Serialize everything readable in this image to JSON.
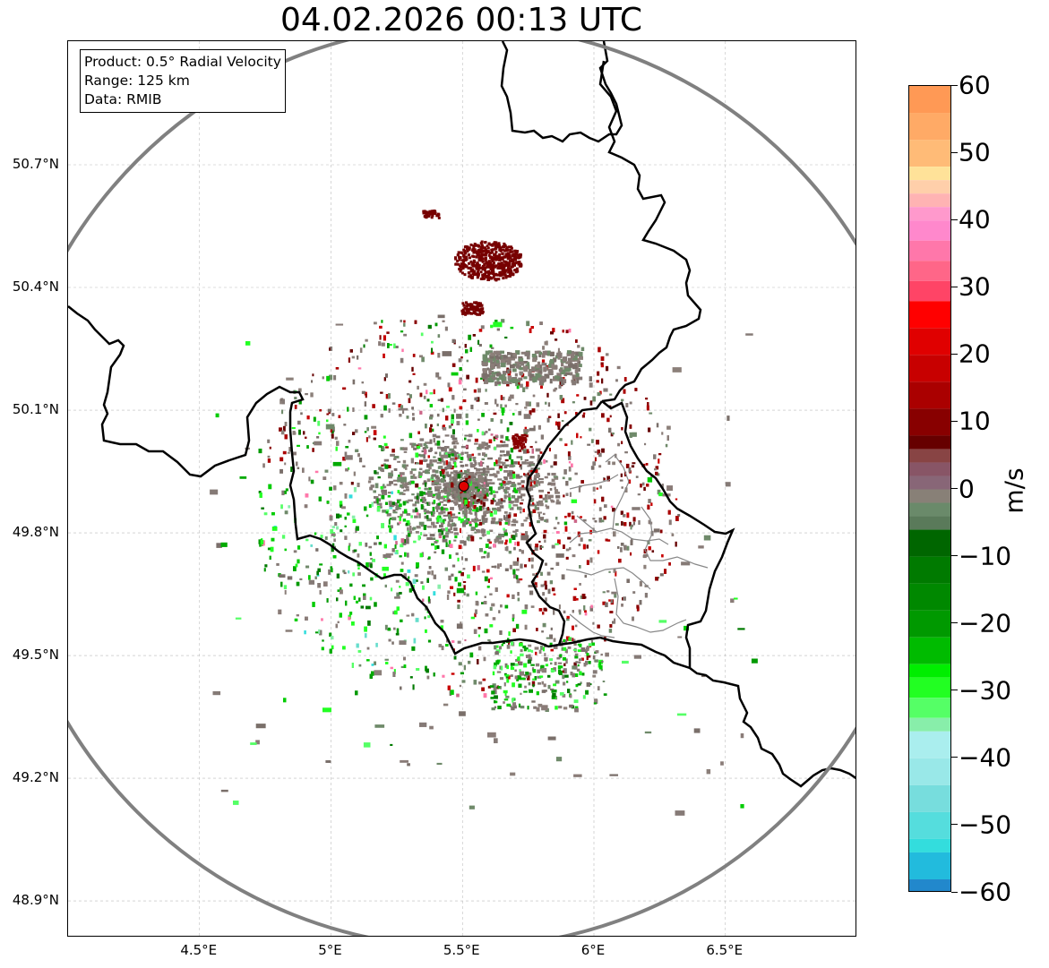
{
  "title": "04.02.2026 00:13 UTC",
  "info_box": {
    "lines": [
      "Product: 0.5° Radial Velocity",
      "Range: 125 km",
      "Data: RMIB"
    ]
  },
  "map": {
    "radar_site": {
      "lon": 5.505,
      "lat": 49.914
    },
    "range_km": 125,
    "lon_range": [
      4.0,
      7.0
    ],
    "lat_range": [
      48.8,
      50.98
    ],
    "lat_ticks": [
      {
        "value": 50.7,
        "label": "50.7°N"
      },
      {
        "value": 50.4,
        "label": "50.4°N"
      },
      {
        "value": 50.1,
        "label": "50.1°N"
      },
      {
        "value": 49.8,
        "label": "49.8°N"
      },
      {
        "value": 49.5,
        "label": "49.5°N"
      },
      {
        "value": 49.2,
        "label": "49.2°N"
      },
      {
        "value": 48.9,
        "label": "48.9°N"
      }
    ],
    "lon_ticks": [
      {
        "value": 4.5,
        "label": "4.5°E"
      },
      {
        "value": 5.0,
        "label": "5°E"
      },
      {
        "value": 5.5,
        "label": "5.5°E"
      },
      {
        "value": 6.0,
        "label": "6°E"
      },
      {
        "value": 6.5,
        "label": "6.5°E"
      }
    ],
    "colors": {
      "range_ring": "#808080",
      "border": "#000000",
      "admin_border": "#888888",
      "grid": "#bbbbbb",
      "site_marker": "#e00000"
    }
  },
  "colorbar": {
    "unit": "m/s",
    "min": -60,
    "max": 60,
    "ticks": [
      {
        "value": 60,
        "label": "60"
      },
      {
        "value": 50,
        "label": "50"
      },
      {
        "value": 40,
        "label": "40"
      },
      {
        "value": 30,
        "label": "30"
      },
      {
        "value": 20,
        "label": "20"
      },
      {
        "value": 10,
        "label": "10"
      },
      {
        "value": 0,
        "label": "0"
      },
      {
        "value": -10,
        "label": "−10"
      },
      {
        "value": -20,
        "label": "−20"
      },
      {
        "value": -30,
        "label": "−30"
      },
      {
        "value": -40,
        "label": "−40"
      },
      {
        "value": -50,
        "label": "−50"
      },
      {
        "value": -60,
        "label": "−60"
      }
    ],
    "stops": [
      {
        "v": 60,
        "c": "#ff9955"
      },
      {
        "v": 56,
        "c": "#ffaa66"
      },
      {
        "v": 52,
        "c": "#ffbb77"
      },
      {
        "v": 48,
        "c": "#ffe299"
      },
      {
        "v": 46,
        "c": "#ffcfaa"
      },
      {
        "v": 44,
        "c": "#ffb3b3"
      },
      {
        "v": 42,
        "c": "#ff99cc"
      },
      {
        "v": 40,
        "c": "#ff88cc"
      },
      {
        "v": 37,
        "c": "#ff77aa"
      },
      {
        "v": 34,
        "c": "#ff6688"
      },
      {
        "v": 31,
        "c": "#ff4466"
      },
      {
        "v": 28,
        "c": "#ff0000"
      },
      {
        "v": 24,
        "c": "#e00000"
      },
      {
        "v": 20,
        "c": "#c80000"
      },
      {
        "v": 16,
        "c": "#aa0000"
      },
      {
        "v": 12,
        "c": "#880000"
      },
      {
        "v": 8,
        "c": "#660000"
      },
      {
        "v": 6,
        "c": "#884444"
      },
      {
        "v": 4,
        "c": "#885566"
      },
      {
        "v": 2,
        "c": "#886677"
      },
      {
        "v": 0,
        "c": "#888077"
      },
      {
        "v": -2,
        "c": "#6a8a6a"
      },
      {
        "v": -4,
        "c": "#5a7a5a"
      },
      {
        "v": -6,
        "c": "#006600"
      },
      {
        "v": -10,
        "c": "#007a00"
      },
      {
        "v": -14,
        "c": "#008800"
      },
      {
        "v": -18,
        "c": "#009900"
      },
      {
        "v": -22,
        "c": "#00bb00"
      },
      {
        "v": -26,
        "c": "#00ee00"
      },
      {
        "v": -28,
        "c": "#22ff22"
      },
      {
        "v": -31,
        "c": "#55ff66"
      },
      {
        "v": -34,
        "c": "#88eeaa"
      },
      {
        "v": -36,
        "c": "#aaeeee"
      },
      {
        "v": -40,
        "c": "#99e8e8"
      },
      {
        "v": -44,
        "c": "#77dddd"
      },
      {
        "v": -48,
        "c": "#55dddd"
      },
      {
        "v": -52,
        "c": "#33dddd"
      },
      {
        "v": -54,
        "c": "#22bbdd"
      },
      {
        "v": -58,
        "c": "#2288cc"
      },
      {
        "v": -60,
        "c": "#2277bb"
      }
    ]
  }
}
